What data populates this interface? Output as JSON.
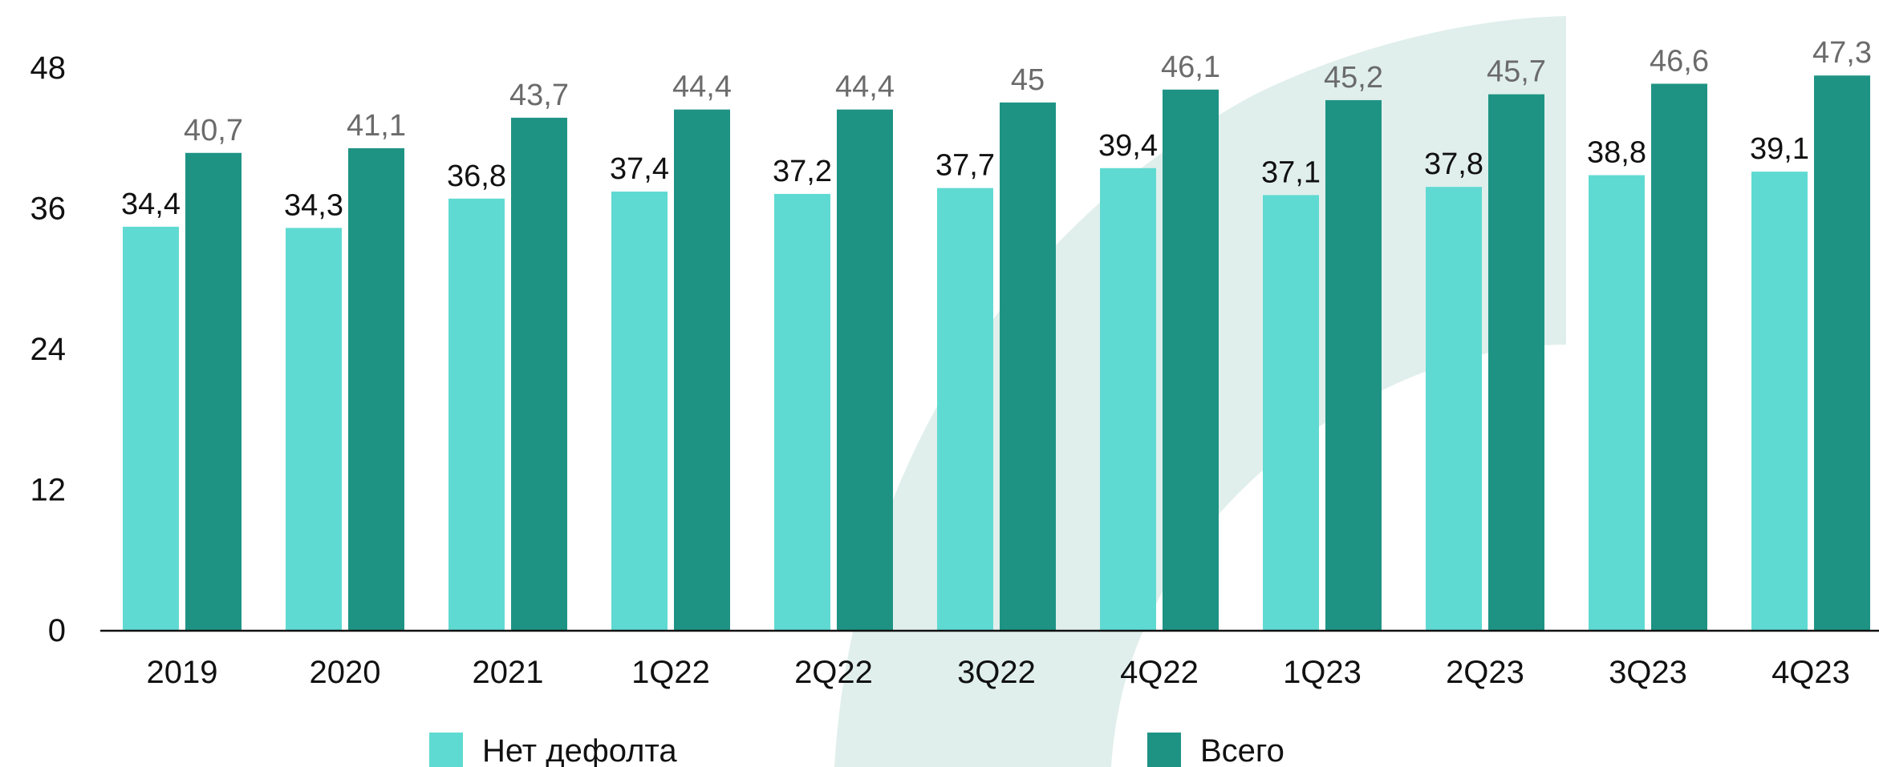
{
  "chart_data": {
    "type": "bar",
    "categories": [
      "2019",
      "2020",
      "2021",
      "1Q22",
      "2Q22",
      "3Q22",
      "4Q22",
      "1Q23",
      "2Q23",
      "3Q23",
      "4Q23"
    ],
    "series": [
      {
        "name": "Нет дефолта",
        "color": "#5fdad2",
        "label_color": "#111111",
        "values": [
          34.4,
          34.3,
          36.8,
          37.4,
          37.2,
          37.7,
          39.4,
          37.1,
          37.8,
          38.8,
          39.1
        ],
        "labels": [
          "34,4",
          "34,3",
          "36,8",
          "37,4",
          "37,2",
          "37,7",
          "39,4",
          "37,1",
          "37,8",
          "38,8",
          "39,1"
        ]
      },
      {
        "name": "Всего",
        "color": "#1e9384",
        "label_color": "#6b6b6b",
        "values": [
          40.7,
          41.1,
          43.7,
          44.4,
          44.4,
          45.0,
          46.1,
          45.2,
          45.7,
          46.6,
          47.3
        ],
        "labels": [
          "40,7",
          "41,1",
          "43,7",
          "44,4",
          "44,4",
          "45",
          "46,1",
          "45,2",
          "45,7",
          "46,6",
          "47,3"
        ]
      }
    ],
    "y_ticks": [
      0,
      12,
      24,
      36,
      48
    ],
    "ylim": [
      0,
      48
    ],
    "title": "",
    "xlabel": "",
    "ylabel": "",
    "grid": false,
    "legend_position": "bottom",
    "background_decoration_color": "#e0efec"
  }
}
